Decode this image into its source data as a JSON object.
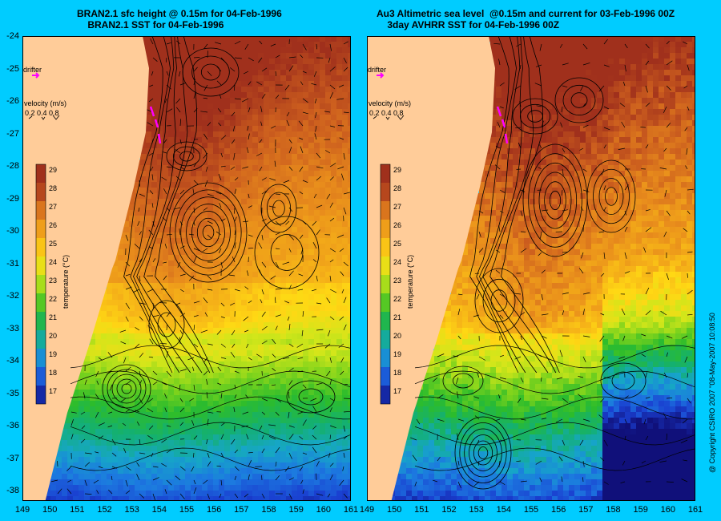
{
  "titles": {
    "left_line1": "BRAN2.1 sfc height @ 0.15m for 04-Feb-1996",
    "left_line2": "BRAN2.1 SST for 04-Feb-1996",
    "right_line1": "Au3 Altimetric sea level  @0.15m and current for 03-Feb-1996 00Z",
    "right_line2": "3day AVHRR SST for 04-Feb-1996 00Z"
  },
  "map": {
    "lon_labels": [
      "149",
      "150",
      "151",
      "152",
      "153",
      "154",
      "155",
      "156",
      "157",
      "158",
      "159",
      "160",
      "161"
    ],
    "lat_labels": [
      "-24",
      "-25",
      "-26",
      "-27",
      "-28",
      "-29",
      "-30",
      "-31",
      "-32",
      "-33",
      "-34",
      "-35",
      "-36",
      "-37",
      "-38"
    ],
    "lon_range": [
      149,
      161
    ],
    "lat_range": [
      -24,
      -38.3
    ]
  },
  "legend": {
    "drifter_label": "drifter",
    "velocity_title": "velocity (m/s)",
    "velocity_values": "0.2 0.4 0.8",
    "temperature_title": "temperature (°C)",
    "temperature_ticks": [
      "29",
      "28",
      "27",
      "26",
      "25",
      "24",
      "23",
      "22",
      "21",
      "20",
      "19",
      "18",
      "17"
    ],
    "colors": {
      "drifter": "#ff00ff",
      "land": "#ffcc99",
      "background": "#00ccff"
    }
  },
  "copyright": "@ Copyright CSIRO 2007 \"08-May-2007 10:08:50"
}
